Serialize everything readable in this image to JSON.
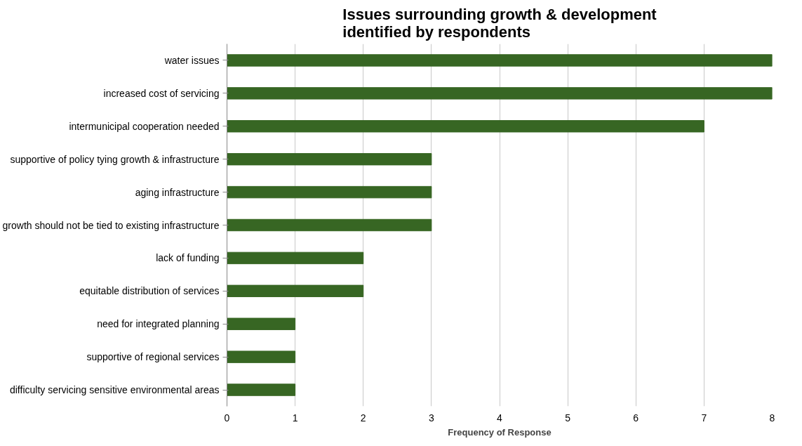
{
  "chart_data": {
    "type": "bar",
    "orientation": "horizontal",
    "title": "Issues surrounding growth & development\nidentified by respondents",
    "xlabel": "Frequency of Response",
    "categories": [
      "water issues",
      "increased cost of servicing",
      "intermunicipal cooperation needed",
      "supportive of policy tying growth & infrastructure",
      "aging infrastructure",
      "growth should not be tied to existing infrastructure",
      "lack of funding",
      "equitable distribution of services",
      "need for integrated planning",
      "supportive of regional services",
      "difficulty servicing sensitive environmental areas"
    ],
    "values": [
      8,
      8,
      7,
      3,
      3,
      3,
      2,
      2,
      1,
      1,
      1
    ],
    "color": "#376623",
    "xlim": [
      0,
      8
    ],
    "xticks": [
      0,
      1,
      2,
      3,
      4,
      5,
      6,
      7,
      8
    ],
    "grid": "x"
  }
}
